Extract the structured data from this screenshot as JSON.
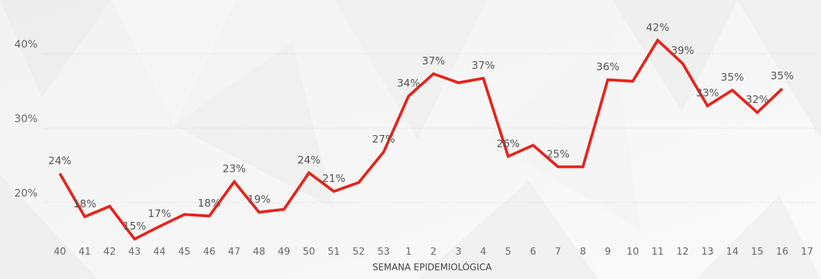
{
  "chart_data": {
    "type": "line",
    "x_label": "SEMANA EPIDEMIOLÓGICA",
    "categories": [
      "40",
      "41",
      "42",
      "43",
      "44",
      "45",
      "46",
      "47",
      "48",
      "49",
      "50",
      "51",
      "52",
      "53",
      "1",
      "2",
      "3",
      "4",
      "5",
      "6",
      "7",
      "8",
      "9",
      "10",
      "11",
      "12",
      "13",
      "14",
      "15",
      "16",
      "17"
    ],
    "values": [
      23.9,
      18.1,
      19.5,
      15.1,
      16.8,
      18.4,
      18.2,
      22.8,
      18.7,
      19.1,
      24.0,
      21.5,
      22.7,
      26.8,
      34.3,
      37.3,
      36.1,
      36.7,
      26.2,
      27.7,
      24.8,
      24.8,
      36.5,
      36.3,
      41.8,
      38.7,
      33.0,
      35.1,
      32.1,
      35.3,
      null
    ],
    "value_labels": [
      "24%",
      "18%",
      null,
      "15%",
      "17%",
      null,
      "18%",
      "23%",
      "19%",
      null,
      "24%",
      "21%",
      null,
      "27%",
      "34%",
      "37%",
      null,
      "37%",
      "26%",
      null,
      "25%",
      null,
      "36%",
      null,
      "42%",
      "39%",
      "33%",
      "35%",
      "32%",
      "35%",
      null
    ],
    "color": "#e8231b",
    "ylim": [
      14.5,
      46
    ],
    "yticks": [
      {
        "value": 20,
        "label": "20%"
      },
      {
        "value": 30,
        "label": "30%"
      },
      {
        "value": 40,
        "label": "40%"
      }
    ],
    "grid": true
  }
}
